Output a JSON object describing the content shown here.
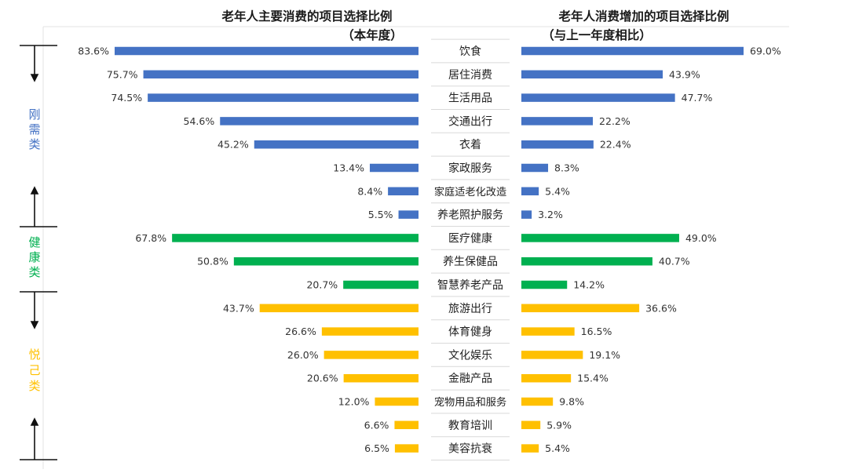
{
  "chart_data": {
    "type": "bar",
    "left_title": [
      "老年人主要消费的项目选择比例",
      "（本年度）"
    ],
    "right_title": [
      "老年人消费增加的项目选择比例",
      "（与上一年度相比）"
    ],
    "categories": [
      "饮食",
      "居住消费",
      "生活用品",
      "交通出行",
      "衣着",
      "家政服务",
      "家庭适老化改造",
      "养老照护服务",
      "医疗健康",
      "养生保健品",
      "智慧养老产品",
      "旅游出行",
      "体育健身",
      "文化娱乐",
      "金融产品",
      "宠物用品和服务",
      "教育培训",
      "美容抗衰"
    ],
    "groups": [
      {
        "label": "刚需类",
        "color": "#4472C4",
        "count": 8
      },
      {
        "label": "健康类",
        "color": "#00B050",
        "count": 3
      },
      {
        "label": "悦己类",
        "color": "#FFC000",
        "count": 7
      }
    ],
    "series": [
      {
        "values": [
          83.6,
          75.7,
          74.5,
          54.6,
          45.2,
          13.4,
          8.4,
          5.5,
          67.8,
          50.8,
          20.7,
          43.7,
          26.6,
          26.0,
          20.6,
          12.0,
          6.6,
          6.5
        ]
      },
      {
        "values": [
          69.0,
          43.9,
          47.7,
          22.2,
          22.4,
          8.3,
          5.4,
          3.2,
          49.0,
          40.7,
          14.2,
          36.6,
          16.5,
          19.1,
          15.4,
          9.8,
          5.9,
          5.4
        ]
      }
    ],
    "value_format": "%",
    "ylim": [
      0,
      100
    ]
  }
}
